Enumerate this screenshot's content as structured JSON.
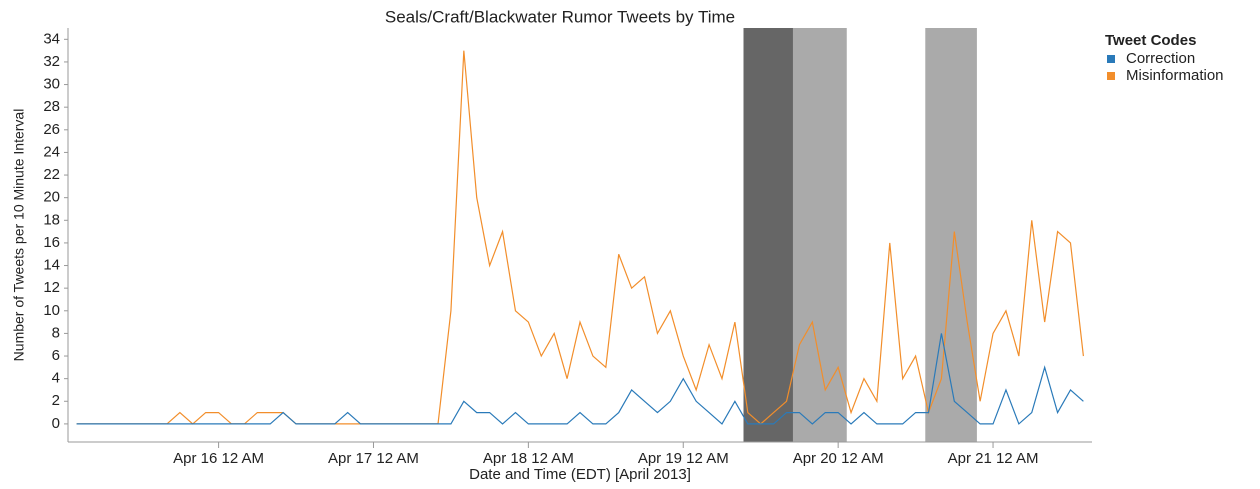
{
  "chart_data": {
    "type": "line",
    "title": "Seals/Craft/Blackwater Rumor Tweets by Time",
    "x_label": "Date and Time (EDT) [April 2013]",
    "y_label": "Number of Tweets per 10 Minute Interval",
    "legend_title": "Tweet Codes",
    "legend_position": "right",
    "x": [
      "2013-04-15T02:00",
      "2013-04-15T04:00",
      "2013-04-15T06:00",
      "2013-04-15T08:00",
      "2013-04-15T10:00",
      "2013-04-15T12:00",
      "2013-04-15T14:00",
      "2013-04-15T16:00",
      "2013-04-15T18:00",
      "2013-04-15T20:00",
      "2013-04-15T22:00",
      "2013-04-16T00:00",
      "2013-04-16T02:00",
      "2013-04-16T04:00",
      "2013-04-16T06:00",
      "2013-04-16T08:00",
      "2013-04-16T10:00",
      "2013-04-16T12:00",
      "2013-04-16T14:00",
      "2013-04-16T16:00",
      "2013-04-16T18:00",
      "2013-04-16T20:00",
      "2013-04-16T22:00",
      "2013-04-17T00:00",
      "2013-04-17T02:00",
      "2013-04-17T04:00",
      "2013-04-17T06:00",
      "2013-04-17T08:00",
      "2013-04-17T10:00",
      "2013-04-17T12:00",
      "2013-04-17T14:00",
      "2013-04-17T16:00",
      "2013-04-17T18:00",
      "2013-04-17T20:00",
      "2013-04-17T22:00",
      "2013-04-18T00:00",
      "2013-04-18T02:00",
      "2013-04-18T04:00",
      "2013-04-18T06:00",
      "2013-04-18T08:00",
      "2013-04-18T10:00",
      "2013-04-18T12:00",
      "2013-04-18T14:00",
      "2013-04-18T16:00",
      "2013-04-18T18:00",
      "2013-04-18T20:00",
      "2013-04-18T22:00",
      "2013-04-19T00:00",
      "2013-04-19T02:00",
      "2013-04-19T04:00",
      "2013-04-19T06:00",
      "2013-04-19T08:00",
      "2013-04-19T10:00",
      "2013-04-19T12:00",
      "2013-04-19T14:00",
      "2013-04-19T16:00",
      "2013-04-19T18:00",
      "2013-04-19T20:00",
      "2013-04-19T22:00",
      "2013-04-20T00:00",
      "2013-04-20T02:00",
      "2013-04-20T04:00",
      "2013-04-20T06:00",
      "2013-04-20T08:00",
      "2013-04-20T10:00",
      "2013-04-20T12:00",
      "2013-04-20T14:00",
      "2013-04-20T16:00",
      "2013-04-20T18:00",
      "2013-04-20T20:00",
      "2013-04-20T22:00",
      "2013-04-21T00:00",
      "2013-04-21T02:00",
      "2013-04-21T04:00",
      "2013-04-21T06:00",
      "2013-04-21T08:00",
      "2013-04-21T10:00",
      "2013-04-21T12:00",
      "2013-04-21T14:00"
    ],
    "series": [
      {
        "name": "Correction",
        "color": "#2a7ab9",
        "values": [
          0,
          0,
          0,
          0,
          0,
          0,
          0,
          0,
          0,
          0,
          0,
          0,
          0,
          0,
          0,
          0,
          1,
          0,
          0,
          0,
          0,
          1,
          0,
          0,
          0,
          0,
          0,
          0,
          0,
          0,
          2,
          1,
          1,
          0,
          1,
          0,
          0,
          0,
          0,
          1,
          0,
          0,
          1,
          3,
          2,
          1,
          2,
          4,
          2,
          1,
          0,
          2,
          0,
          0,
          0,
          1,
          1,
          0,
          1,
          1,
          0,
          1,
          0,
          0,
          0,
          1,
          1,
          8,
          2,
          1,
          0,
          0,
          3,
          0,
          1,
          5,
          1,
          3,
          2
        ]
      },
      {
        "name": "Misinformation",
        "color": "#f28e2b",
        "values": [
          0,
          0,
          0,
          0,
          0,
          0,
          0,
          0,
          1,
          0,
          1,
          1,
          0,
          0,
          1,
          1,
          1,
          0,
          0,
          0,
          0,
          0,
          0,
          0,
          0,
          0,
          0,
          0,
          0,
          10,
          33,
          20,
          14,
          17,
          10,
          9,
          6,
          8,
          4,
          9,
          6,
          5,
          15,
          12,
          13,
          8,
          10,
          6,
          3,
          7,
          4,
          9,
          1,
          0,
          1,
          2,
          7,
          9,
          3,
          5,
          1,
          4,
          2,
          16,
          4,
          6,
          1,
          4,
          17,
          9,
          2,
          8,
          10,
          6,
          18,
          9,
          17,
          16,
          6
        ]
      }
    ],
    "shaded_periods": [
      {
        "start": "2013-04-19T09:20",
        "end": "2013-04-19T17:00",
        "color": "#666666"
      },
      {
        "start": "2013-04-19T17:00",
        "end": "2013-04-20T01:20",
        "color": "#aaaaaa"
      },
      {
        "start": "2013-04-20T13:30",
        "end": "2013-04-20T21:30",
        "color": "#aaaaaa"
      }
    ],
    "xlim": [
      "2013-04-15T00:40",
      "2013-04-21T15:20"
    ],
    "xticks": [
      {
        "value": "2013-04-16T00:00",
        "label": "Apr 16 12 AM"
      },
      {
        "value": "2013-04-17T00:00",
        "label": "Apr 17 12 AM"
      },
      {
        "value": "2013-04-18T00:00",
        "label": "Apr 18 12 AM"
      },
      {
        "value": "2013-04-19T00:00",
        "label": "Apr 19 12 AM"
      },
      {
        "value": "2013-04-20T00:00",
        "label": "Apr 20 12 AM"
      },
      {
        "value": "2013-04-21T00:00",
        "label": "Apr 21 12 AM"
      }
    ],
    "ylim": [
      -1.6,
      35
    ],
    "yticks": [
      0,
      2,
      4,
      6,
      8,
      10,
      12,
      14,
      16,
      18,
      20,
      22,
      24,
      26,
      28,
      30,
      32,
      34
    ],
    "grid": false
  }
}
